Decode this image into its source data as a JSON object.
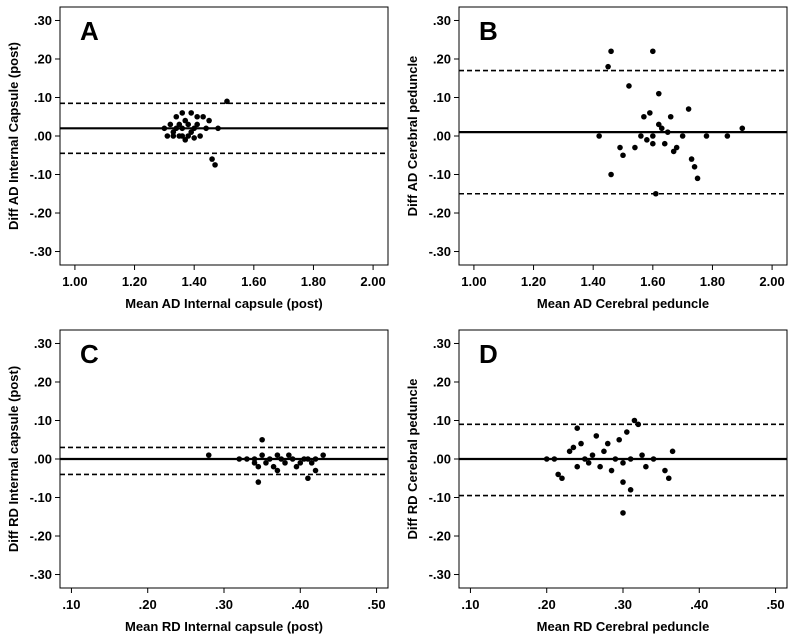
{
  "chart_data": [
    {
      "type": "scatter",
      "panel_label": "A",
      "xlabel": "Mean AD Internal capsule (post)",
      "ylabel": "Diff AD Internal Capsule (post)",
      "xlim": [
        0.95,
        2.05
      ],
      "ylim": [
        -0.335,
        0.335
      ],
      "xticks": [
        1.0,
        1.2,
        1.4,
        1.6,
        1.8,
        2.0
      ],
      "xtick_labels": [
        "1.00",
        "1.20",
        "1.40",
        "1.60",
        "1.80",
        "2.00"
      ],
      "yticks": [
        0.3,
        0.2,
        0.1,
        0.0,
        -0.1,
        -0.2,
        -0.3
      ],
      "ytick_labels": [
        ".30",
        ".20",
        ".10",
        ".00",
        "-.10",
        "-.20",
        "-.30"
      ],
      "mean_line": 0.02,
      "upper_loa": 0.085,
      "lower_loa": -0.045,
      "points": [
        [
          1.3,
          0.02
        ],
        [
          1.31,
          0.0
        ],
        [
          1.32,
          0.03
        ],
        [
          1.33,
          0.01
        ],
        [
          1.34,
          0.02
        ],
        [
          1.34,
          0.05
        ],
        [
          1.35,
          0.0
        ],
        [
          1.35,
          0.03
        ],
        [
          1.36,
          0.06
        ],
        [
          1.36,
          0.02
        ],
        [
          1.37,
          -0.01
        ],
        [
          1.37,
          0.04
        ],
        [
          1.38,
          0.0
        ],
        [
          1.38,
          0.03
        ],
        [
          1.39,
          0.06
        ],
        [
          1.39,
          0.01
        ],
        [
          1.4,
          0.02
        ],
        [
          1.4,
          -0.005
        ],
        [
          1.41,
          0.05
        ],
        [
          1.41,
          0.03
        ],
        [
          1.42,
          0.0
        ],
        [
          1.43,
          0.05
        ],
        [
          1.44,
          0.02
        ],
        [
          1.45,
          0.04
        ],
        [
          1.46,
          -0.06
        ],
        [
          1.47,
          -0.075
        ],
        [
          1.48,
          0.02
        ],
        [
          1.51,
          0.09
        ],
        [
          1.33,
          0.0
        ],
        [
          1.36,
          0.0
        ]
      ]
    },
    {
      "type": "scatter",
      "panel_label": "B",
      "xlabel": "Mean AD Cerebral peduncle",
      "ylabel": "Diff AD Cerebral peduncle",
      "xlim": [
        0.95,
        2.05
      ],
      "ylim": [
        -0.335,
        0.335
      ],
      "xticks": [
        1.0,
        1.2,
        1.4,
        1.6,
        1.8,
        2.0
      ],
      "xtick_labels": [
        "1.00",
        "1.20",
        "1.40",
        "1.60",
        "1.80",
        "2.00"
      ],
      "yticks": [
        0.3,
        0.2,
        0.1,
        0.0,
        -0.1,
        -0.2,
        -0.3
      ],
      "ytick_labels": [
        ".30",
        ".20",
        ".10",
        ".00",
        "-.10",
        "-.20",
        "-.30"
      ],
      "mean_line": 0.01,
      "upper_loa": 0.17,
      "lower_loa": -0.15,
      "points": [
        [
          1.46,
          0.22
        ],
        [
          1.45,
          0.18
        ],
        [
          1.6,
          0.22
        ],
        [
          1.52,
          0.13
        ],
        [
          1.42,
          0.0
        ],
        [
          1.46,
          -0.1
        ],
        [
          1.49,
          -0.03
        ],
        [
          1.5,
          -0.05
        ],
        [
          1.54,
          -0.03
        ],
        [
          1.57,
          0.05
        ],
        [
          1.58,
          -0.01
        ],
        [
          1.59,
          0.06
        ],
        [
          1.6,
          0.0
        ],
        [
          1.6,
          -0.02
        ],
        [
          1.61,
          -0.15
        ],
        [
          1.62,
          0.11
        ],
        [
          1.62,
          0.03
        ],
        [
          1.63,
          0.02
        ],
        [
          1.64,
          -0.02
        ],
        [
          1.65,
          0.01
        ],
        [
          1.66,
          0.05
        ],
        [
          1.67,
          -0.04
        ],
        [
          1.68,
          -0.03
        ],
        [
          1.7,
          0.0
        ],
        [
          1.72,
          0.07
        ],
        [
          1.73,
          -0.06
        ],
        [
          1.74,
          -0.08
        ],
        [
          1.75,
          -0.11
        ],
        [
          1.78,
          0.0
        ],
        [
          1.85,
          0.0
        ],
        [
          1.9,
          0.02
        ],
        [
          1.56,
          0.0
        ]
      ]
    },
    {
      "type": "scatter",
      "panel_label": "C",
      "xlabel": "Mean RD Internal capsule (post)",
      "ylabel": "Diff RD Internal capsule (post)",
      "xlim": [
        0.085,
        0.515
      ],
      "ylim": [
        -0.335,
        0.335
      ],
      "xticks": [
        0.1,
        0.2,
        0.3,
        0.4,
        0.5
      ],
      "xtick_labels": [
        ".10",
        ".20",
        ".30",
        ".40",
        ".50"
      ],
      "yticks": [
        0.3,
        0.2,
        0.1,
        0.0,
        -0.1,
        -0.2,
        -0.3
      ],
      "ytick_labels": [
        ".30",
        ".20",
        ".10",
        ".00",
        "-.10",
        "-.20",
        "-.30"
      ],
      "mean_line": 0.0,
      "upper_loa": 0.03,
      "lower_loa": -0.04,
      "points": [
        [
          0.28,
          0.01
        ],
        [
          0.32,
          0.0
        ],
        [
          0.33,
          0.0
        ],
        [
          0.34,
          -0.01
        ],
        [
          0.34,
          0.0
        ],
        [
          0.345,
          -0.02
        ],
        [
          0.345,
          -0.06
        ],
        [
          0.35,
          0.05
        ],
        [
          0.35,
          0.01
        ],
        [
          0.355,
          -0.01
        ],
        [
          0.36,
          0.0
        ],
        [
          0.365,
          -0.02
        ],
        [
          0.37,
          0.01
        ],
        [
          0.37,
          -0.03
        ],
        [
          0.375,
          0.0
        ],
        [
          0.38,
          -0.01
        ],
        [
          0.385,
          0.01
        ],
        [
          0.39,
          0.0
        ],
        [
          0.395,
          -0.02
        ],
        [
          0.4,
          -0.01
        ],
        [
          0.405,
          0.0
        ],
        [
          0.41,
          -0.05
        ],
        [
          0.41,
          0.0
        ],
        [
          0.415,
          -0.01
        ],
        [
          0.42,
          0.0
        ],
        [
          0.42,
          -0.03
        ],
        [
          0.43,
          0.01
        ]
      ]
    },
    {
      "type": "scatter",
      "panel_label": "D",
      "xlabel": "Mean RD Cerebral peduncle",
      "ylabel": "Diff RD Cerebral peduncle",
      "xlim": [
        0.085,
        0.515
      ],
      "ylim": [
        -0.335,
        0.335
      ],
      "xticks": [
        0.1,
        0.2,
        0.3,
        0.4,
        0.5
      ],
      "xtick_labels": [
        ".10",
        ".20",
        ".30",
        ".40",
        ".50"
      ],
      "yticks": [
        0.3,
        0.2,
        0.1,
        0.0,
        -0.1,
        -0.2,
        -0.3
      ],
      "ytick_labels": [
        ".30",
        ".20",
        ".10",
        ".00",
        "-.10",
        "-.20",
        "-.30"
      ],
      "mean_line": 0.0,
      "upper_loa": 0.09,
      "lower_loa": -0.095,
      "points": [
        [
          0.2,
          0.0
        ],
        [
          0.21,
          0.0
        ],
        [
          0.215,
          -0.04
        ],
        [
          0.22,
          -0.05
        ],
        [
          0.23,
          0.02
        ],
        [
          0.235,
          0.03
        ],
        [
          0.24,
          -0.02
        ],
        [
          0.24,
          0.08
        ],
        [
          0.245,
          0.04
        ],
        [
          0.25,
          0.0
        ],
        [
          0.255,
          -0.01
        ],
        [
          0.26,
          0.01
        ],
        [
          0.265,
          0.06
        ],
        [
          0.27,
          -0.02
        ],
        [
          0.275,
          0.02
        ],
        [
          0.28,
          0.04
        ],
        [
          0.285,
          -0.03
        ],
        [
          0.29,
          0.0
        ],
        [
          0.295,
          0.05
        ],
        [
          0.3,
          -0.06
        ],
        [
          0.3,
          -0.14
        ],
        [
          0.305,
          0.07
        ],
        [
          0.31,
          -0.08
        ],
        [
          0.31,
          0.0
        ],
        [
          0.315,
          0.1
        ],
        [
          0.32,
          0.09
        ],
        [
          0.325,
          0.01
        ],
        [
          0.33,
          -0.02
        ],
        [
          0.34,
          0.0
        ],
        [
          0.355,
          -0.03
        ],
        [
          0.36,
          -0.05
        ],
        [
          0.365,
          0.02
        ],
        [
          0.3,
          -0.01
        ]
      ]
    }
  ]
}
